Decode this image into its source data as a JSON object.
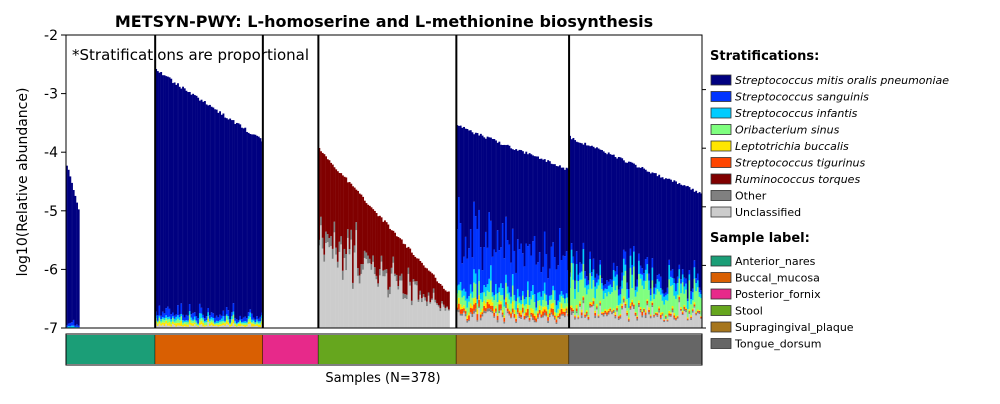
{
  "chart_data": {
    "type": "bar",
    "stacked": true,
    "log_scale": true,
    "title": "METSYN-PWY: L-homoserine and L-methionine biosynthesis",
    "ylabel": "log10(Relative abundance)",
    "xlabel": "Samples (N=378)",
    "annotation": "*Stratifications are proportional",
    "ylim": [
      -7,
      -2
    ],
    "yticks": [
      "-2",
      "-3",
      "-4",
      "-5",
      "-6",
      "-7"
    ],
    "grid": false,
    "legend_position": "right",
    "stratifications_title": "Stratifications:",
    "stratifications": [
      {
        "name": "Streptococcus mitis oralis pneumoniae",
        "color": "#000080"
      },
      {
        "name": "Streptococcus sanguinis",
        "color": "#0033ff"
      },
      {
        "name": "Streptococcus infantis",
        "color": "#00ccff"
      },
      {
        "name": "Oribacterium sinus",
        "color": "#7fff7f"
      },
      {
        "name": "Leptotrichia buccalis",
        "color": "#ffe600"
      },
      {
        "name": "Streptococcus tigurinus",
        "color": "#ff4500"
      },
      {
        "name": "Ruminococcus torques",
        "color": "#800000"
      },
      {
        "name": "Other",
        "color": "#808080"
      },
      {
        "name": "Unclassified",
        "color": "#cccccc"
      }
    ],
    "sample_label_title": "Sample label:",
    "groups": [
      {
        "name": "Anterior_nares",
        "color": "#1b9e77",
        "n": 53,
        "log_top_start": -4.2,
        "log_top_end": -5.0,
        "zero_fraction": 0.85
      },
      {
        "name": "Buccal_mucosa",
        "color": "#d95f02",
        "n": 64,
        "log_top_start": -2.6,
        "log_top_end": -3.8,
        "zero_fraction": 0.0
      },
      {
        "name": "Posterior_fornix",
        "color": "#e7298a",
        "n": 33,
        "log_top_start": null,
        "log_top_end": null,
        "zero_fraction": 1.0
      },
      {
        "name": "Stool",
        "color": "#66a61e",
        "n": 82,
        "log_top_start": -3.95,
        "log_top_end": -6.4,
        "zero_fraction": 0.05
      },
      {
        "name": "Supragingival_plaque",
        "color": "#a6761d",
        "n": 67,
        "log_top_start": -3.55,
        "log_top_end": -4.3,
        "zero_fraction": 0.0
      },
      {
        "name": "Tongue_dorsum",
        "color": "#666666",
        "n": 79,
        "log_top_start": -3.75,
        "log_top_end": -4.7,
        "zero_fraction": 0.0
      }
    ]
  }
}
